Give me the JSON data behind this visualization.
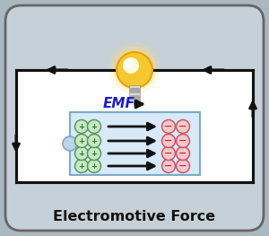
{
  "bg_color": "#aab8c2",
  "card_color": "#c5d0d8",
  "card_border": "#666666",
  "outer_rect_color": "#ffffff",
  "outer_rect_border": "#1a1a1a",
  "battery_bg": "#d8eaf8",
  "battery_border": "#7aaac8",
  "plus_bg": "#c8e8c8",
  "plus_border": "#5a9a5a",
  "minus_bg": "#f5c8cc",
  "minus_border": "#cc5566",
  "emf_text_color": "#1a1acc",
  "arrow_color": "#111111",
  "title_text": "Electromotive Force",
  "emf_label": "EMF",
  "title_color": "#111111",
  "bulb_yellow": "#f5c830",
  "bulb_orange": "#e8a000",
  "bulb_white": "#fffef0",
  "bulb_base_light": "#d8d8d8",
  "bulb_base_dark": "#aaaaaa",
  "circ_color": "#c0d4e8",
  "figsize": [
    3.0,
    2.63
  ],
  "dpi": 100
}
